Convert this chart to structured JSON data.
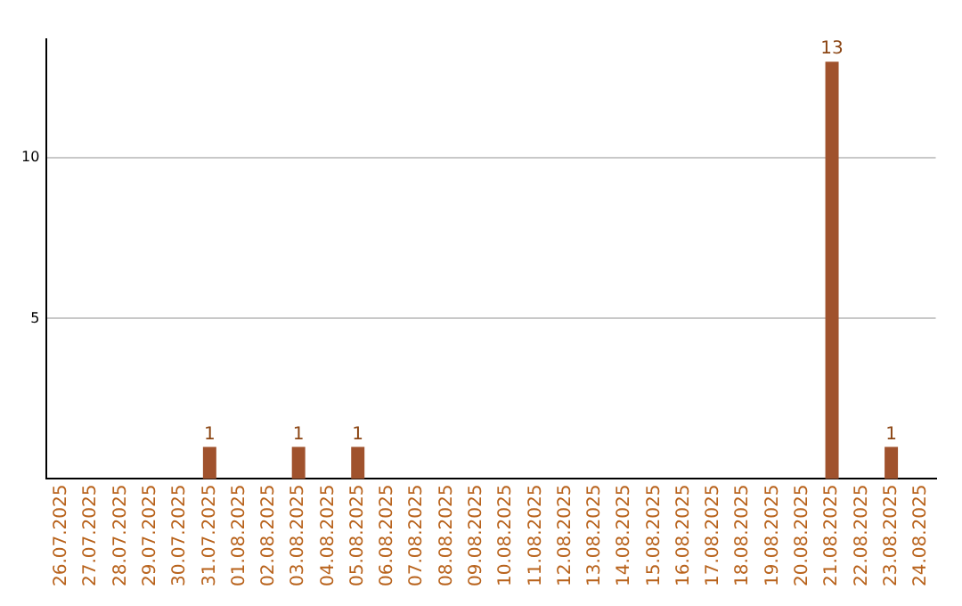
{
  "chart_data": {
    "type": "bar",
    "categories": [
      "26.07.2025",
      "27.07.2025",
      "28.07.2025",
      "29.07.2025",
      "30.07.2025",
      "31.07.2025",
      "01.08.2025",
      "02.08.2025",
      "03.08.2025",
      "04.08.2025",
      "05.08.2025",
      "06.08.2025",
      "07.08.2025",
      "08.08.2025",
      "09.08.2025",
      "10.08.2025",
      "11.08.2025",
      "12.08.2025",
      "13.08.2025",
      "14.08.2025",
      "15.08.2025",
      "16.08.2025",
      "17.08.2025",
      "18.08.2025",
      "19.08.2025",
      "20.08.2025",
      "21.08.2025",
      "22.08.2025",
      "23.08.2025",
      "24.08.2025"
    ],
    "values": [
      0,
      0,
      0,
      0,
      0,
      1,
      0,
      0,
      1,
      0,
      1,
      0,
      0,
      0,
      0,
      0,
      0,
      0,
      0,
      0,
      0,
      0,
      0,
      0,
      0,
      0,
      13,
      0,
      1,
      0
    ],
    "value_labels": [
      null,
      null,
      null,
      null,
      null,
      "1",
      null,
      null,
      "1",
      null,
      "1",
      null,
      null,
      null,
      null,
      null,
      null,
      null,
      null,
      null,
      null,
      null,
      null,
      null,
      null,
      null,
      "13",
      null,
      "1",
      null
    ],
    "color": "#a0522d",
    "ylim": [
      0,
      13.7
    ],
    "yticks": [
      5,
      10
    ],
    "grid": "y",
    "legend": false
  }
}
